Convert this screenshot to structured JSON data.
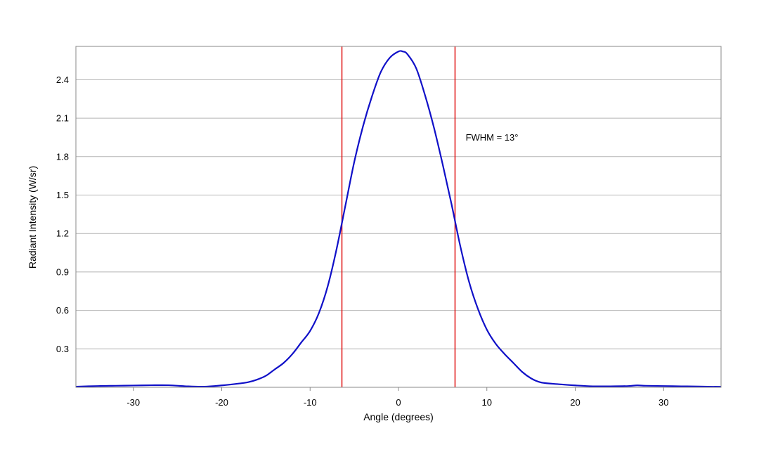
{
  "chart_data": {
    "type": "line",
    "title": "",
    "xlabel": "Angle (degrees)",
    "ylabel": "Radiant Intensity (W/sr)",
    "xlim": [
      -36.5,
      36.5
    ],
    "ylim": [
      0,
      2.66
    ],
    "x_ticks": [
      -30,
      -20,
      -10,
      0,
      10,
      20,
      30
    ],
    "x_tick_labels": [
      "-30",
      "-20",
      "-10",
      "0",
      "10",
      "20",
      "30"
    ],
    "y_ticks": [
      0.3,
      0.6,
      0.9,
      1.2,
      1.5,
      1.8,
      2.1,
      2.4
    ],
    "y_tick_labels": [
      "0.3",
      "0.6",
      "0.9",
      "1.2",
      "1.5",
      "1.8",
      "2.1",
      "2.4"
    ],
    "grid": "horizontal",
    "legend": "none",
    "colors": {
      "curve": "#1010c8",
      "markers": "#e01010",
      "grid": "#b4b4b4",
      "frame": "#8a8a8a"
    },
    "series": [
      {
        "x": [
          -36.5,
          -34,
          -32,
          -30,
          -28,
          -26,
          -24,
          -22,
          -20,
          -18,
          -17,
          -16,
          -15,
          -14,
          -13,
          -12,
          -11,
          -10,
          -9,
          -8,
          -7,
          -6,
          -5,
          -4,
          -3,
          -2,
          -1,
          0,
          0.5,
          1,
          2,
          3,
          4,
          5,
          6,
          7,
          8,
          9,
          10,
          11,
          12,
          13,
          14,
          15,
          16,
          17,
          18,
          20,
          22,
          24,
          26,
          27,
          28,
          30,
          32,
          34,
          36.5
        ],
        "y": [
          0.005,
          0.01,
          0.012,
          0.014,
          0.016,
          0.016,
          0.008,
          0.005,
          0.015,
          0.03,
          0.04,
          0.06,
          0.09,
          0.14,
          0.19,
          0.26,
          0.35,
          0.44,
          0.58,
          0.79,
          1.08,
          1.42,
          1.76,
          2.04,
          2.27,
          2.46,
          2.57,
          2.62,
          2.62,
          2.6,
          2.49,
          2.28,
          2.03,
          1.74,
          1.43,
          1.1,
          0.82,
          0.61,
          0.45,
          0.34,
          0.26,
          0.19,
          0.12,
          0.07,
          0.04,
          0.03,
          0.025,
          0.015,
          0.008,
          0.008,
          0.01,
          0.015,
          0.012,
          0.01,
          0.008,
          0.006,
          0.004
        ]
      }
    ],
    "markers": [
      {
        "x": -6.4
      },
      {
        "x": 6.4
      }
    ],
    "annotation": {
      "text": "FWHM = 13°",
      "x": 7.6,
      "y": 1.95
    }
  }
}
